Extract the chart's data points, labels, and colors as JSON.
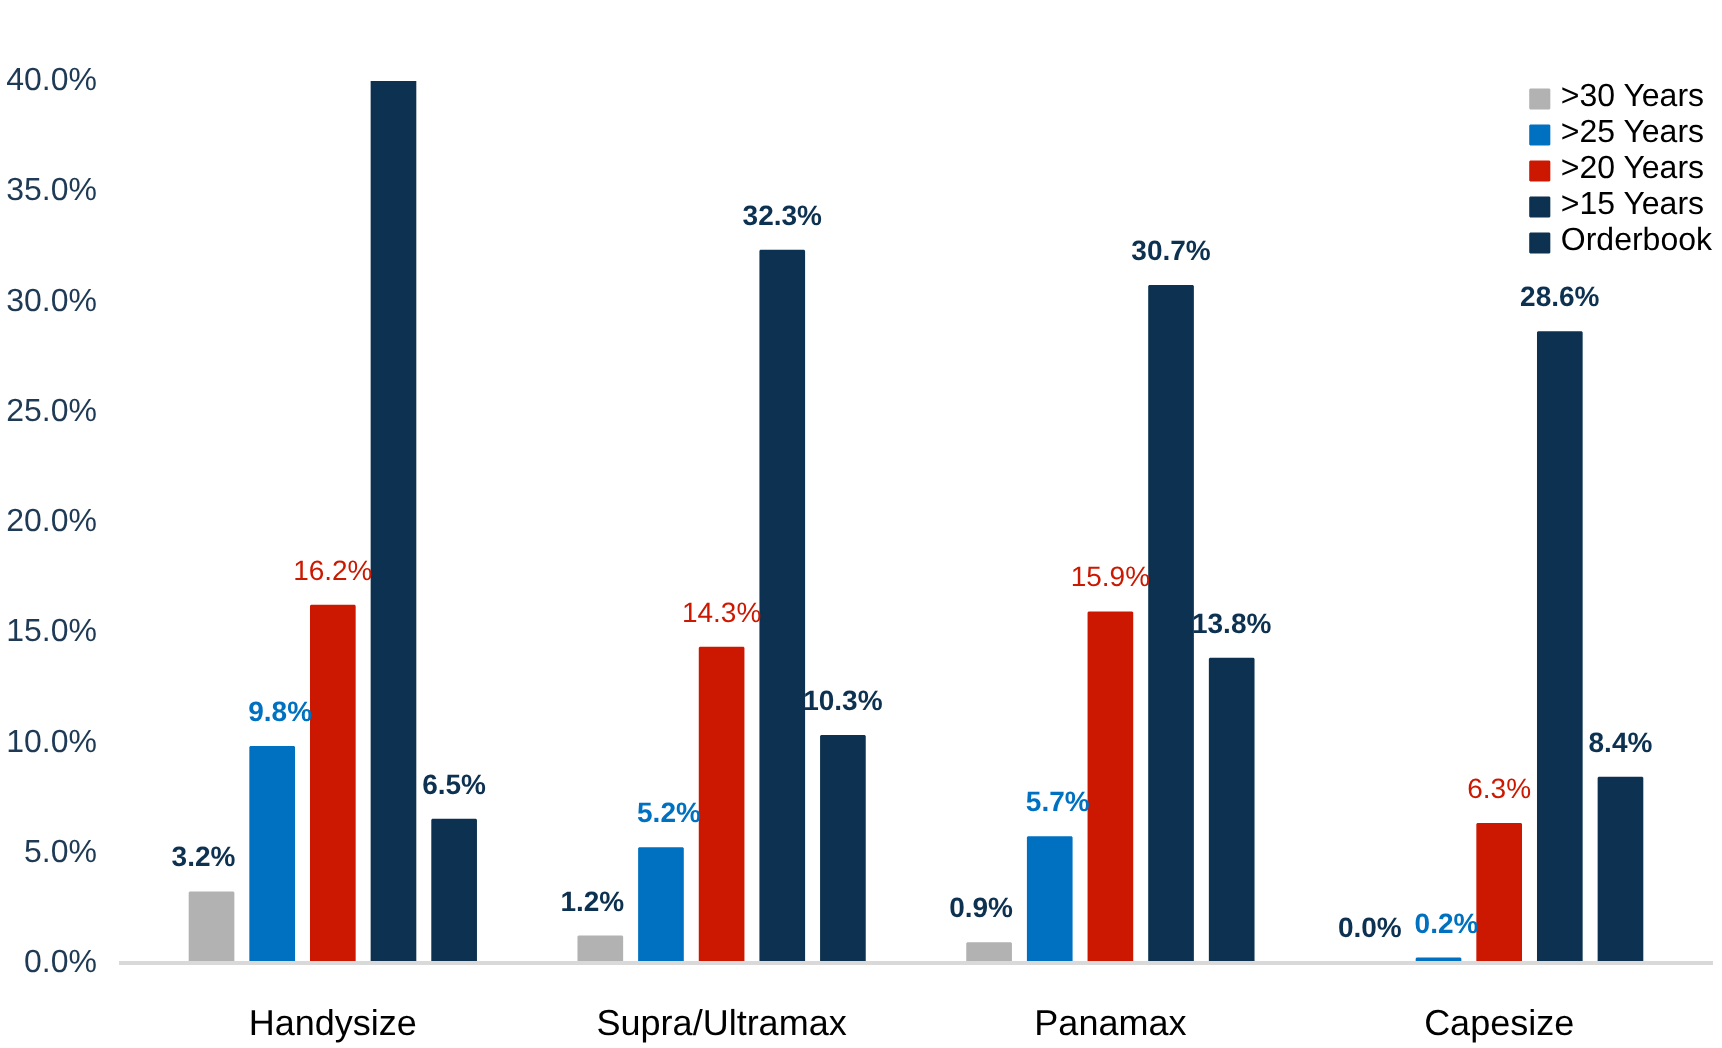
{
  "chart_data": {
    "type": "bar",
    "categories": [
      "Handysize",
      "Supra/Ultramax",
      "Panamax",
      "Capesize"
    ],
    "series": [
      {
        "name": ">30 Years",
        "color": "#b2b2b2",
        "values": [
          3.2,
          1.2,
          0.9,
          0.0
        ],
        "value_labels": [
          "3.2%",
          "1.2%",
          "0.9%",
          "0.0%"
        ]
      },
      {
        "name": ">25 Years",
        "color": "#0070c0",
        "values": [
          9.8,
          5.2,
          5.7,
          0.2
        ],
        "value_labels": [
          "9.8%",
          "5.2%",
          "5.7%",
          "0.2%"
        ]
      },
      {
        "name": ">20 Years",
        "color": "#cc1800",
        "values": [
          16.2,
          14.3,
          15.9,
          6.3
        ],
        "value_labels": [
          "16.2%",
          "14.3%",
          "15.9%",
          "6.3%"
        ]
      },
      {
        "name": ">15 Years",
        "color": "#0d3150",
        "values": [
          40.0,
          32.3,
          30.7,
          28.6
        ],
        "value_labels": [
          null,
          "32.3%",
          "30.7%",
          "28.6%"
        ]
      },
      {
        "name": "Orderbook",
        "color": "#0d3150",
        "values": [
          6.5,
          10.3,
          13.8,
          8.4
        ],
        "value_labels": [
          "6.5%",
          "10.3%",
          "13.8%",
          "8.4%"
        ]
      }
    ],
    "ylim": [
      0,
      40
    ],
    "yticks": [
      {
        "value": 0,
        "label": "0.0%"
      },
      {
        "value": 5,
        "label": "5.0%"
      },
      {
        "value": 10,
        "label": "10.0%"
      },
      {
        "value": 15,
        "label": "15.0%"
      },
      {
        "value": 20,
        "label": "20.0%"
      },
      {
        "value": 25,
        "label": "25.0%"
      },
      {
        "value": 30,
        "label": "30.0%"
      },
      {
        "value": 35,
        "label": "35.0%"
      },
      {
        "value": 40,
        "label": "40.0%"
      }
    ],
    "grid": false,
    "legend": "top right"
  }
}
